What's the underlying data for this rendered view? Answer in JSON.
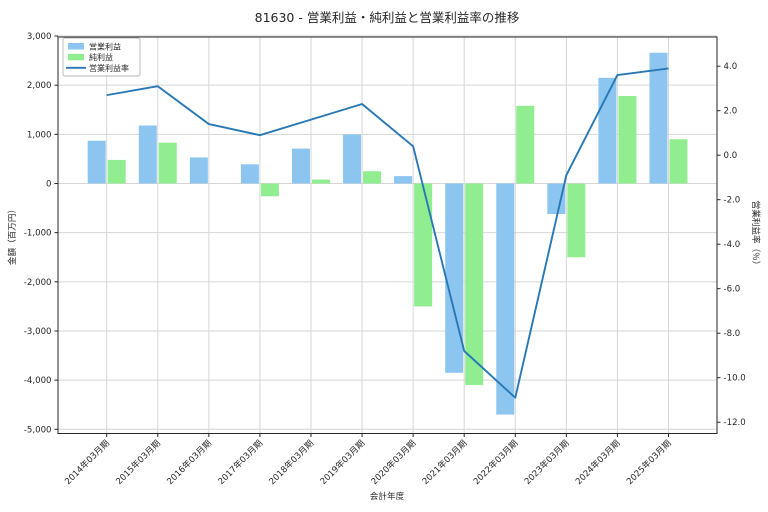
{
  "window": {
    "title": "81630 - 営業利益・純利益と営業利益率の推移"
  },
  "chart_data": {
    "type": "bar+line",
    "title": "81630 - 営業利益・純利益と営業利益率の推移",
    "xlabel": "会計年度",
    "ylabel_left": "金額（百万円）",
    "ylabel_right": "営業利益率（％）",
    "categories": [
      "2014年03月期",
      "2015年03月期",
      "2016年03月期",
      "2017年03月期",
      "2018年03月期",
      "2019年03月期",
      "2020年03月期",
      "2021年03月期",
      "2022年03月期",
      "2023年03月期",
      "2024年03月期",
      "2025年03月期"
    ],
    "series": [
      {
        "name": "営業利益",
        "type": "bar",
        "axis": "left",
        "color": "#8cc5f0",
        "values": [
          870,
          1180,
          530,
          390,
          710,
          1000,
          150,
          -3850,
          -4700,
          -620,
          2150,
          2660
        ]
      },
      {
        "name": "純利益",
        "type": "bar",
        "axis": "left",
        "color": "#90ee90",
        "values": [
          480,
          830,
          0,
          -260,
          80,
          250,
          -2500,
          -4100,
          1580,
          -1500,
          1780,
          900
        ]
      },
      {
        "name": "営業利益率",
        "type": "line",
        "axis": "right",
        "color": "#2878b5",
        "values": [
          2.7,
          3.1,
          1.4,
          0.9,
          1.6,
          2.3,
          0.4,
          -8.8,
          -10.9,
          -0.9,
          3.6,
          3.9
        ]
      }
    ],
    "left_axis": {
      "ticks": [
        3000,
        2000,
        1000,
        0,
        -1000,
        -2000,
        -3000,
        -4000,
        -5000
      ],
      "range": [
        -5100,
        3000
      ],
      "unit": "百万円"
    },
    "right_axis": {
      "ticks": [
        4.0,
        2.0,
        0.0,
        -2.0,
        -4.0,
        -6.0,
        -8.0,
        -10.0,
        -12.0
      ],
      "range": [
        -12.5,
        5.3
      ],
      "unit": "%"
    },
    "legend": {
      "position": "upper-left",
      "entries": [
        "営業利益",
        "純利益",
        "営業利益率"
      ]
    },
    "grid": true,
    "colors": {
      "grid": "#d6d6d6",
      "frame": "#262626",
      "background": "#ffffff"
    }
  }
}
